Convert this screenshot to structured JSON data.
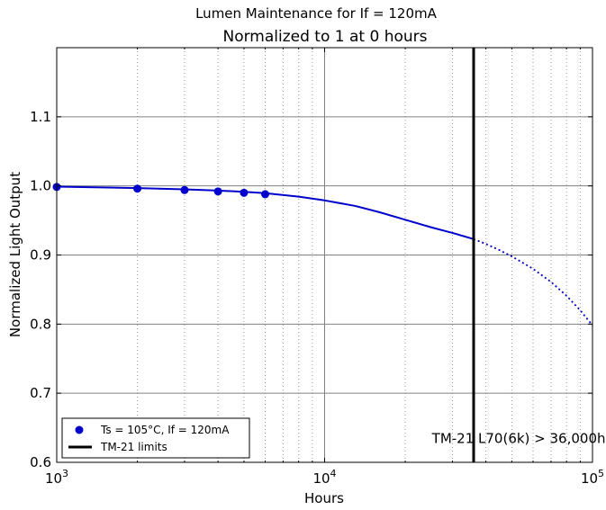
{
  "chart_data": {
    "type": "line",
    "title": "Normalized to 1 at 0 hours",
    "suptitle": "Lumen Maintenance for If = 120mA",
    "xlabel": "Hours",
    "ylabel": "Normalized Light Output",
    "xscale": "log",
    "xlim": [
      1000,
      100000
    ],
    "ylim": [
      0.6,
      1.2
    ],
    "grid": true,
    "legend_position": "lower-left",
    "x_major_ticks": [
      1000,
      10000,
      100000
    ],
    "x_tick_labels": [
      {
        "base": "10",
        "exp": "3"
      },
      {
        "base": "10",
        "exp": "4"
      },
      {
        "base": "10",
        "exp": "5"
      }
    ],
    "y_ticks": [
      0.6,
      0.7,
      0.8,
      0.9,
      1.0,
      1.1
    ],
    "y_tick_labels": [
      "0.6",
      "0.7",
      "0.8",
      "0.9",
      "1.0",
      "1.1"
    ],
    "series": [
      {
        "name": "Ts = 105°C, If = 120mA",
        "kind": "markers",
        "color": "#0000cc",
        "x": [
          1000,
          2000,
          3000,
          4000,
          5000,
          6000
        ],
        "y": [
          0.9985,
          0.996,
          0.994,
          0.992,
          0.99,
          0.988
        ]
      },
      {
        "kind": "fit-solid",
        "color": "#0000cc",
        "x": [
          1000,
          2000,
          3000,
          4000,
          5000,
          6000,
          8000,
          10000,
          13000,
          16000,
          20000,
          25000,
          30000,
          36000
        ],
        "y": [
          0.999,
          0.9968,
          0.995,
          0.9932,
          0.9915,
          0.9895,
          0.9845,
          0.979,
          0.971,
          0.962,
          0.951,
          0.94,
          0.932,
          0.923
        ]
      },
      {
        "kind": "fit-dotted",
        "color": "#0000cc",
        "x": [
          36000,
          40000,
          45000,
          50000,
          60000,
          70000,
          80000,
          90000,
          100000
        ],
        "y": [
          0.923,
          0.916,
          0.907,
          0.898,
          0.88,
          0.861,
          0.841,
          0.82,
          0.798
        ]
      },
      {
        "name": "TM-21 limits",
        "kind": "vline",
        "color": "#000000",
        "x": 36000
      }
    ],
    "annotations": [
      {
        "text": "TM-21 L70(6k) > 36,000hrs",
        "x": 56000,
        "y": 0.628
      }
    ]
  }
}
